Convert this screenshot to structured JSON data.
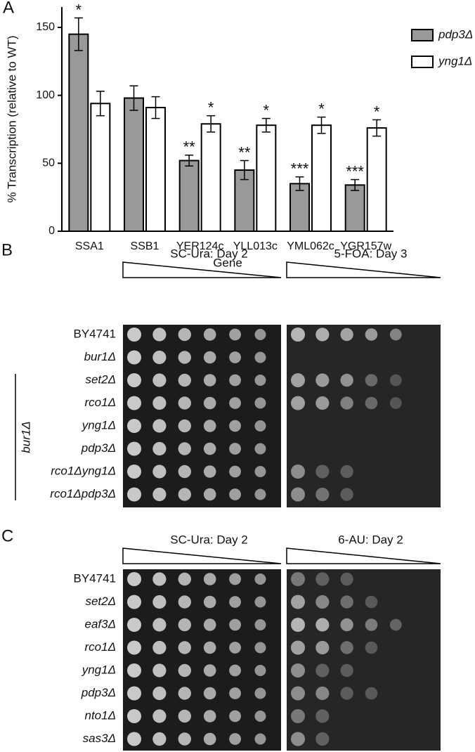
{
  "chart_data": {
    "type": "bar",
    "panel_label": "A",
    "ylabel": "% Transcription (relative to WT)",
    "xlabel": "Gene",
    "categories": [
      "SSA1",
      "SSB1",
      "YER124c",
      "YLL013c",
      "YML062c",
      "YGR157w"
    ],
    "series": [
      {
        "name": "pdp3Δ",
        "color": "#999999",
        "values": [
          145,
          98,
          52,
          45,
          35,
          34
        ],
        "errors": [
          12,
          9,
          4,
          7,
          5,
          4
        ],
        "annotations": [
          "*",
          null,
          "**",
          "**",
          "***",
          "***"
        ]
      },
      {
        "name": "yng1Δ",
        "color": "#ffffff",
        "values": [
          94,
          91,
          79,
          78,
          78,
          76
        ],
        "errors": [
          9,
          8,
          6,
          5,
          6,
          6
        ],
        "annotations": [
          null,
          null,
          "*",
          "*",
          "*",
          "*"
        ]
      }
    ],
    "ylim": [
      0,
      165
    ],
    "yticks": [
      0,
      50,
      100,
      150
    ],
    "legend": "top-right"
  },
  "panels": [
    {
      "label": "B",
      "conditions": [
        "SC-Ura:  Day 2",
        "5-FOA:  Day 3"
      ],
      "group_label": "bur1Δ",
      "strains": [
        "BY4741",
        "bur1Δ",
        "set2Δ",
        "rco1Δ",
        "yng1Δ",
        "pdp3Δ",
        "rco1Δyng1Δ",
        "rco1Δpdp3Δ"
      ]
    },
    {
      "label": "C",
      "conditions": [
        "SC-Ura:  Day 2",
        "6-AU:  Day 2"
      ],
      "strains": [
        "BY4741",
        "set2Δ",
        "eaf3Δ",
        "rco1Δ",
        "yng1Δ",
        "pdp3Δ",
        "nto1Δ",
        "sas3Δ"
      ]
    }
  ]
}
